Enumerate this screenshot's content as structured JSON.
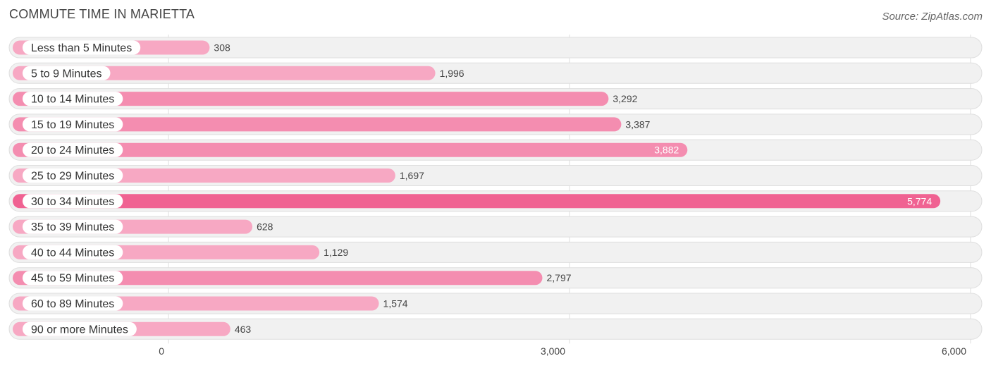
{
  "header": {
    "title": "COMMUTE TIME IN MARIETTA",
    "source": "Source: ZipAtlas.com"
  },
  "colors": {
    "bar_light": "#f7a8c3",
    "bar_mid": "#f48db0",
    "bar_max": "#f06292",
    "value_dark": "#444444",
    "value_light": "#ffffff"
  },
  "chart_data": {
    "type": "bar",
    "orientation": "horizontal",
    "title": "COMMUTE TIME IN MARIETTA",
    "categories": [
      "Less than 5 Minutes",
      "5 to 9 Minutes",
      "10 to 14 Minutes",
      "15 to 19 Minutes",
      "20 to 24 Minutes",
      "25 to 29 Minutes",
      "30 to 34 Minutes",
      "35 to 39 Minutes",
      "40 to 44 Minutes",
      "45 to 59 Minutes",
      "60 to 89 Minutes",
      "90 or more Minutes"
    ],
    "values": [
      308,
      1996,
      3292,
      3387,
      3882,
      1697,
      5774,
      628,
      1129,
      2797,
      1574,
      463
    ],
    "value_labels": [
      "308",
      "1,996",
      "3,292",
      "3,387",
      "3,882",
      "1,697",
      "5,774",
      "628",
      "1,129",
      "2,797",
      "1,574",
      "463"
    ],
    "xlim": [
      0,
      6000
    ],
    "xticks": [
      0,
      3000,
      6000
    ],
    "xtick_labels": [
      "0",
      "3,000",
      "6,000"
    ],
    "xlabel": "",
    "ylabel": "",
    "grid": true
  }
}
